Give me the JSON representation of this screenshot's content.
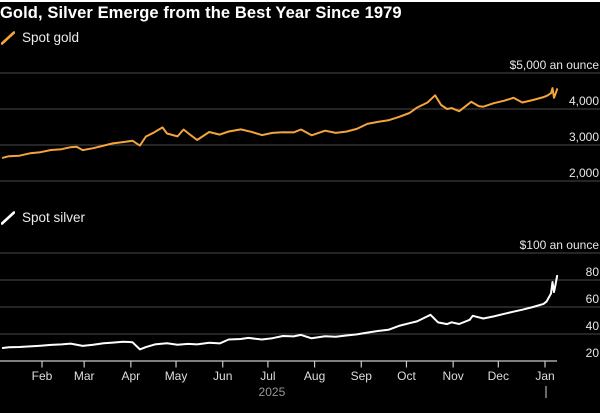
{
  "title": "Gold, Silver Emerge from the Best Year Since 1979",
  "colors": {
    "background": "#000000",
    "gold_line": "#F4A43C",
    "silver_line": "#FFFFFF",
    "grid": "#4A4A4A",
    "axis": "#C9C9C9",
    "tick_label": "#E8E8E8",
    "month_label": "#DEDEDE",
    "year_label": "#979797",
    "title_text": "#FFFFFF",
    "legend_text": "#ECECEC"
  },
  "legends": [
    {
      "label": "Spot gold",
      "swatch_color": "#F4A43C"
    },
    {
      "label": "Spot silver",
      "swatch_color": "#FFFFFF"
    }
  ],
  "x_axis": {
    "month_labels": [
      "Feb",
      "Mar",
      "Apr",
      "May",
      "Jun",
      "Jul",
      "Aug",
      "Sep",
      "Oct",
      "Nov",
      "Dec",
      "Jan"
    ],
    "year_label": "2025",
    "jan_year_marker": "|"
  },
  "chart_data": [
    {
      "type": "line",
      "name": "Spot gold",
      "unit": "USD per ounce",
      "color": "#F4A43C",
      "ylim": [
        2000,
        5000
      ],
      "baseline_is_axis": false,
      "yticks": [
        {
          "value": 5000,
          "label": "$5,000 an ounce"
        },
        {
          "value": 4000,
          "label": "4,000"
        },
        {
          "value": 3000,
          "label": "3,000"
        },
        {
          "value": 2000,
          "label": "2,000"
        }
      ],
      "dates": [
        "2025-01-06",
        "2025-01-10",
        "2025-01-17",
        "2025-01-24",
        "2025-01-31",
        "2025-02-07",
        "2025-02-14",
        "2025-02-20",
        "2025-02-24",
        "2025-02-28",
        "2025-03-07",
        "2025-03-14",
        "2025-03-20",
        "2025-03-28",
        "2025-04-02",
        "2025-04-07",
        "2025-04-11",
        "2025-04-16",
        "2025-04-22",
        "2025-04-25",
        "2025-05-02",
        "2025-05-06",
        "2025-05-09",
        "2025-05-15",
        "2025-05-23",
        "2025-05-30",
        "2025-06-05",
        "2025-06-13",
        "2025-06-20",
        "2025-06-27",
        "2025-07-04",
        "2025-07-11",
        "2025-07-18",
        "2025-07-23",
        "2025-07-30",
        "2025-08-08",
        "2025-08-15",
        "2025-08-22",
        "2025-08-29",
        "2025-09-05",
        "2025-09-12",
        "2025-09-19",
        "2025-09-26",
        "2025-10-03",
        "2025-10-08",
        "2025-10-15",
        "2025-10-20",
        "2025-10-24",
        "2025-10-28",
        "2025-10-31",
        "2025-11-05",
        "2025-11-13",
        "2025-11-18",
        "2025-11-21",
        "2025-11-28",
        "2025-12-05",
        "2025-12-11",
        "2025-12-17",
        "2025-12-24",
        "2025-12-31",
        "2026-01-02",
        "2026-01-05",
        "2026-01-06",
        "2026-01-07",
        "2026-01-08",
        "2026-01-09"
      ],
      "values": [
        2645,
        2690,
        2703,
        2770,
        2800,
        2861,
        2883,
        2939,
        2951,
        2858,
        2910,
        2984,
        3044,
        3085,
        3120,
        2983,
        3236,
        3340,
        3490,
        3320,
        3240,
        3430,
        3330,
        3140,
        3360,
        3290,
        3375,
        3432,
        3368,
        3274,
        3337,
        3356,
        3350,
        3430,
        3270,
        3398,
        3336,
        3372,
        3448,
        3587,
        3643,
        3685,
        3780,
        3890,
        4040,
        4180,
        4380,
        4110,
        4000,
        4025,
        3940,
        4200,
        4080,
        4065,
        4160,
        4230,
        4310,
        4180,
        4250,
        4330,
        4360,
        4440,
        4580,
        4310,
        4420,
        4550
      ]
    },
    {
      "type": "line",
      "name": "Spot silver",
      "unit": "USD per ounce",
      "color": "#FFFFFF",
      "ylim": [
        20,
        100
      ],
      "baseline_is_axis": true,
      "yticks": [
        {
          "value": 100,
          "label": "$100 an ounce"
        },
        {
          "value": 80,
          "label": "80"
        },
        {
          "value": 60,
          "label": "60"
        },
        {
          "value": 40,
          "label": "40"
        },
        {
          "value": 20,
          "label": "20"
        }
      ],
      "dates": [
        "2025-01-06",
        "2025-01-10",
        "2025-01-17",
        "2025-01-24",
        "2025-01-31",
        "2025-02-07",
        "2025-02-14",
        "2025-02-20",
        "2025-02-28",
        "2025-03-07",
        "2025-03-14",
        "2025-03-20",
        "2025-03-27",
        "2025-04-02",
        "2025-04-07",
        "2025-04-11",
        "2025-04-17",
        "2025-04-25",
        "2025-05-02",
        "2025-05-09",
        "2025-05-15",
        "2025-05-23",
        "2025-05-30",
        "2025-06-05",
        "2025-06-13",
        "2025-06-18",
        "2025-06-27",
        "2025-07-04",
        "2025-07-11",
        "2025-07-18",
        "2025-07-23",
        "2025-07-30",
        "2025-08-08",
        "2025-08-15",
        "2025-08-22",
        "2025-08-29",
        "2025-09-05",
        "2025-09-12",
        "2025-09-19",
        "2025-09-26",
        "2025-10-03",
        "2025-10-08",
        "2025-10-14",
        "2025-10-17",
        "2025-10-22",
        "2025-10-28",
        "2025-10-31",
        "2025-11-05",
        "2025-11-12",
        "2025-11-14",
        "2025-11-21",
        "2025-11-28",
        "2025-12-05",
        "2025-12-11",
        "2025-12-17",
        "2025-12-24",
        "2025-12-31",
        "2026-01-02",
        "2026-01-05",
        "2026-01-06",
        "2026-01-07",
        "2026-01-08",
        "2026-01-09"
      ],
      "values": [
        29.6,
        30.2,
        30.4,
        30.8,
        31.3,
        31.9,
        32.3,
        32.9,
        31.2,
        32.0,
        33.1,
        33.6,
        34.3,
        33.9,
        28.6,
        30.3,
        32.3,
        33.1,
        32.1,
        32.7,
        32.3,
        33.5,
        33.0,
        35.9,
        36.3,
        37.1,
        35.9,
        36.9,
        38.5,
        38.2,
        39.3,
        36.8,
        38.3,
        38.0,
        38.9,
        39.7,
        41.0,
        42.2,
        43.1,
        46.0,
        48.0,
        49.3,
        52.6,
        54.2,
        48.6,
        47.3,
        48.7,
        47.4,
        50.5,
        53.5,
        51.5,
        53.0,
        55.0,
        56.5,
        58.0,
        60.0,
        62.3,
        64.0,
        70.0,
        78.5,
        71.0,
        76.5,
        83.0
      ]
    }
  ]
}
